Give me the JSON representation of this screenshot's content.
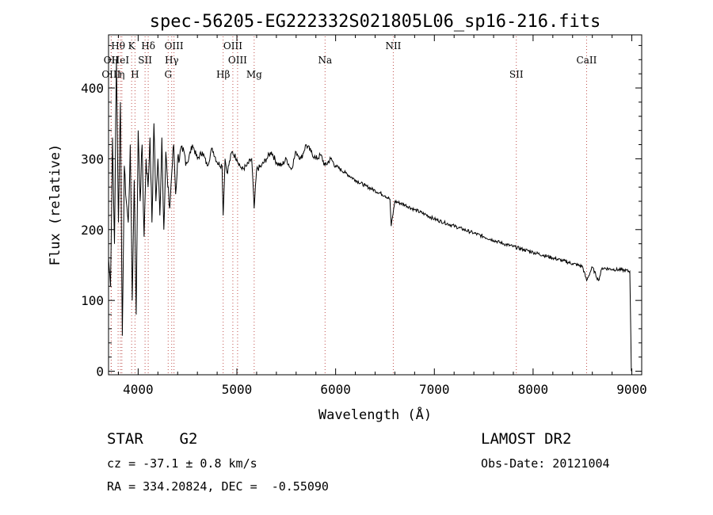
{
  "chart_data": {
    "type": "line",
    "title": "spec-56205-EG222332S021805L06_sp16-216.fits",
    "xlabel": "Wavelength (Å)",
    "ylabel": "Flux (relative)",
    "xlim": [
      3700,
      9100
    ],
    "ylim": [
      -5,
      475
    ],
    "x_ticks": [
      4000,
      5000,
      6000,
      7000,
      8000,
      9000
    ],
    "y_ticks": [
      0,
      100,
      200,
      300,
      400
    ],
    "grid": false,
    "series": [
      {
        "x": [
          3700,
          3720,
          3740,
          3760,
          3780,
          3800,
          3820,
          3840,
          3860,
          3880,
          3900,
          3920,
          3940,
          3960,
          3980,
          4000,
          4020,
          4040,
          4060,
          4080,
          4100,
          4120,
          4140,
          4160,
          4180,
          4200,
          4220,
          4240,
          4260,
          4280,
          4300,
          4320,
          4340,
          4360,
          4380,
          4400,
          4450,
          4500,
          4550,
          4600,
          4650,
          4700,
          4750,
          4800,
          4850,
          4861,
          4880,
          4900,
          4950,
          5000,
          5050,
          5100,
          5150,
          5175,
          5200,
          5250,
          5300,
          5350,
          5400,
          5450,
          5500,
          5550,
          5600,
          5650,
          5700,
          5750,
          5800,
          5850,
          5893,
          5950,
          6000,
          6100,
          6200,
          6300,
          6400,
          6500,
          6550,
          6563,
          6600,
          6700,
          6800,
          6900,
          7000,
          7100,
          7200,
          7300,
          7400,
          7500,
          7600,
          7700,
          7800,
          7900,
          8000,
          8100,
          8200,
          8300,
          8400,
          8500,
          8542,
          8600,
          8662,
          8700,
          8800,
          8900,
          8980,
          8995
        ],
        "y": [
          160,
          120,
          330,
          180,
          440,
          210,
          380,
          50,
          290,
          240,
          210,
          320,
          100,
          270,
          80,
          340,
          240,
          320,
          190,
          300,
          260,
          330,
          210,
          350,
          240,
          300,
          220,
          330,
          200,
          310,
          260,
          230,
          280,
          320,
          250,
          300,
          310,
          295,
          320,
          300,
          310,
          290,
          315,
          295,
          290,
          220,
          300,
          280,
          310,
          300,
          285,
          290,
          300,
          230,
          285,
          290,
          300,
          310,
          295,
          290,
          300,
          285,
          310,
          300,
          320,
          310,
          300,
          305,
          290,
          300,
          290,
          280,
          270,
          262,
          255,
          248,
          243,
          205,
          240,
          235,
          228,
          222,
          215,
          210,
          205,
          200,
          195,
          190,
          185,
          180,
          176,
          172,
          168,
          164,
          160,
          156,
          152,
          148,
          128,
          147,
          128,
          146,
          144,
          143,
          141,
          0
        ]
      }
    ],
    "line_labels": [
      {
        "label": "OII",
        "x": 3727,
        "row": 2
      },
      {
        "label": "OIII",
        "x": 3727,
        "row": 3
      },
      {
        "label": "Hθ",
        "x": 3797,
        "row": 1
      },
      {
        "label": "HeI",
        "x": 3820,
        "row": 2
      },
      {
        "label": "η",
        "x": 3835,
        "row": 3
      },
      {
        "label": "K",
        "x": 3934,
        "row": 1
      },
      {
        "label": "SII",
        "x": 4070,
        "row": 2
      },
      {
        "label": "H",
        "x": 3968,
        "row": 3
      },
      {
        "label": "Hδ",
        "x": 4102,
        "row": 1
      },
      {
        "label": "OIII",
        "x": 4363,
        "row": 1
      },
      {
        "label": "Hγ",
        "x": 4340,
        "row": 2
      },
      {
        "label": "G",
        "x": 4304,
        "row": 3
      },
      {
        "label": "Hβ",
        "x": 4861,
        "row": 3
      },
      {
        "label": "OIII",
        "x": 4959,
        "row": 1
      },
      {
        "label": "OIII",
        "x": 5007,
        "row": 2
      },
      {
        "label": "Mg",
        "x": 5175,
        "row": 3
      },
      {
        "label": "Na",
        "x": 5893,
        "row": 2
      },
      {
        "label": "NII",
        "x": 6584,
        "row": 1
      },
      {
        "label": "SII",
        "x": 7830,
        "row": 3
      },
      {
        "label": "CaII",
        "x": 8542,
        "row": 2
      }
    ]
  },
  "info": {
    "class_line": "STAR    G2",
    "survey": "LAMOST DR2",
    "cz": "cz = -37.1 ± 0.8 km/s",
    "obs_date": "Obs-Date: 20121004",
    "radec": "RA = 334.20824, DEC =  -0.55090"
  },
  "colors": {
    "spectrum": "#000000",
    "line_markers": "#c0504d",
    "background": "#ffffff"
  }
}
